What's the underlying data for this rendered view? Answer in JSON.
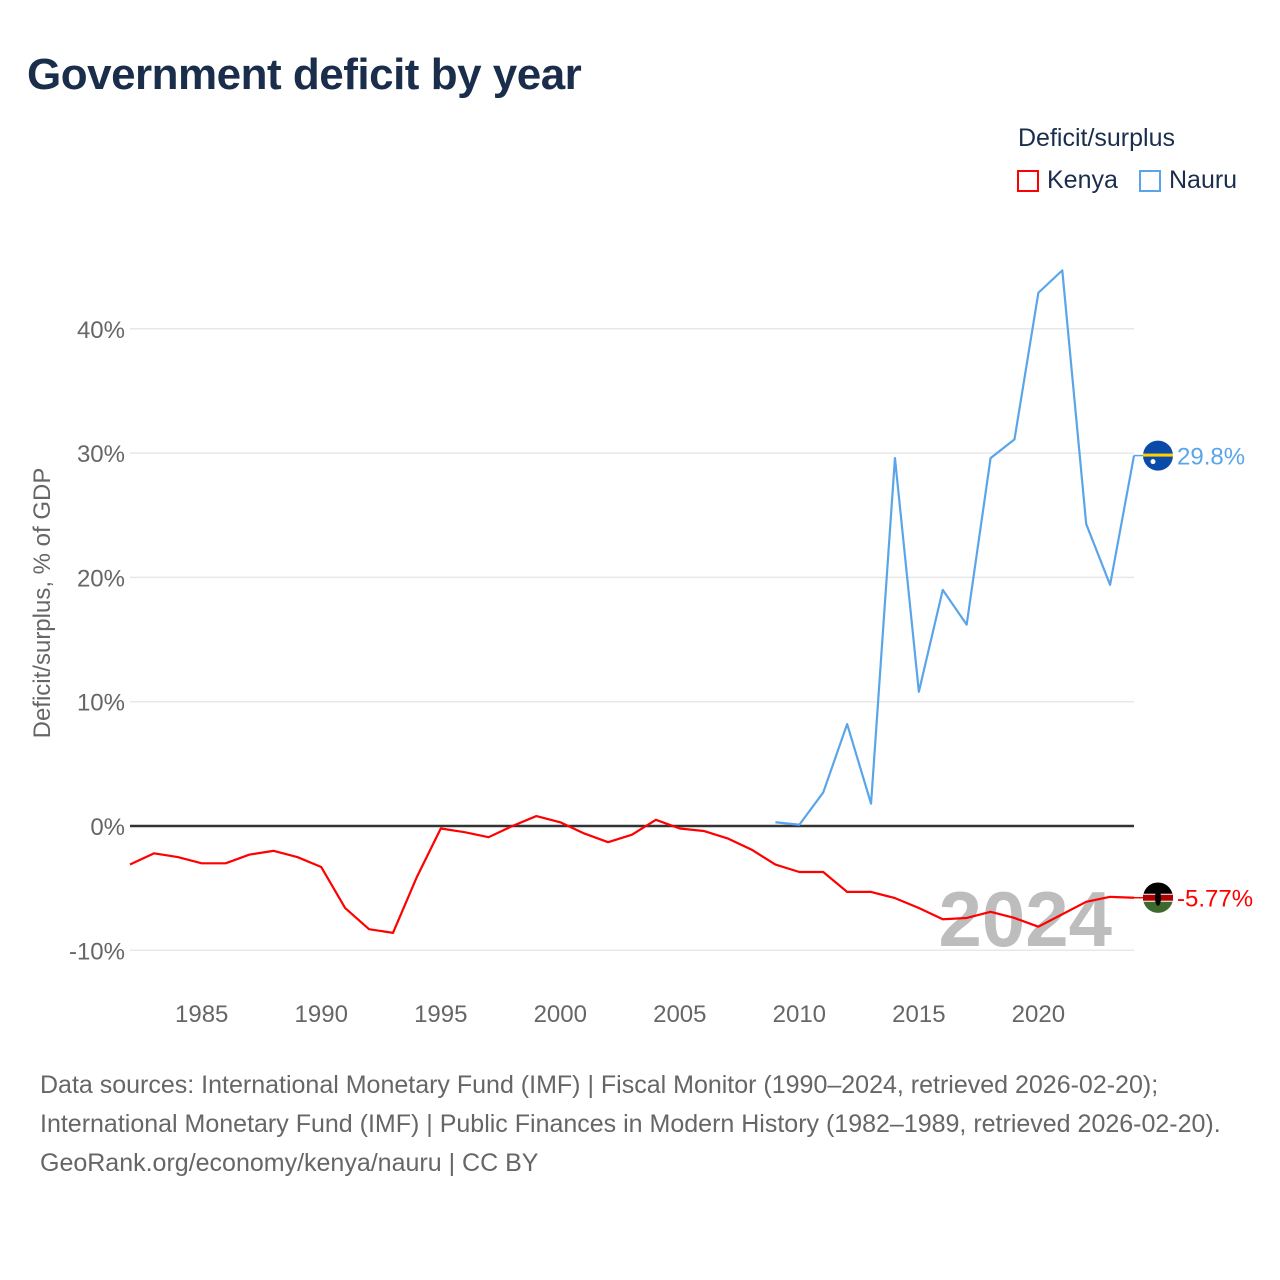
{
  "title": "Government deficit by year",
  "legend": {
    "title": "Deficit/surplus",
    "items": [
      {
        "label": "Kenya",
        "color": "#ff0000"
      },
      {
        "label": "Nauru",
        "color": "#5aa5ea"
      }
    ]
  },
  "chart_data": {
    "type": "line",
    "title": "Government deficit by year",
    "xlabel": "",
    "ylabel": "Deficit/surplus, % of GDP",
    "xlim": [
      1982,
      2024
    ],
    "ylim": [
      -13.7,
      48
    ],
    "x_ticks": [
      1985,
      1990,
      1995,
      2000,
      2005,
      2010,
      2015,
      2020
    ],
    "y_ticks": [
      -10,
      0,
      10,
      20,
      30,
      40
    ],
    "y_tick_labels": [
      "-10%",
      "0%",
      "10%",
      "20%",
      "30%",
      "40%"
    ],
    "grid": true,
    "legend_position": "top-right",
    "watermark_year": "2024",
    "series": [
      {
        "name": "Kenya",
        "color": "#ff0000",
        "end_label": "-5.77%",
        "x": [
          1982,
          1983,
          1984,
          1985,
          1986,
          1987,
          1988,
          1989,
          1990,
          1991,
          1992,
          1993,
          1994,
          1995,
          1996,
          1997,
          1998,
          1999,
          2000,
          2001,
          2002,
          2003,
          2004,
          2005,
          2006,
          2007,
          2008,
          2009,
          2010,
          2011,
          2012,
          2013,
          2014,
          2015,
          2016,
          2017,
          2018,
          2019,
          2020,
          2021,
          2022,
          2023,
          2024
        ],
        "values": [
          -3.1,
          -2.2,
          -2.5,
          -3.0,
          -3.0,
          -2.3,
          -2.0,
          -2.5,
          -3.3,
          -6.6,
          -8.3,
          -8.6,
          -4.1,
          -0.2,
          -0.5,
          -0.9,
          0.0,
          0.8,
          0.3,
          -0.6,
          -1.3,
          -0.7,
          0.5,
          -0.2,
          -0.4,
          -1.0,
          -1.9,
          -3.1,
          -3.7,
          -3.7,
          -5.3,
          -5.3,
          -5.8,
          -6.6,
          -7.5,
          -7.4,
          -6.9,
          -7.4,
          -8.1,
          -7.1,
          -6.1,
          -5.7,
          -5.77
        ]
      },
      {
        "name": "Nauru",
        "color": "#5aa5ea",
        "end_label": "29.8%",
        "x": [
          2009,
          2010,
          2011,
          2012,
          2013,
          2014,
          2015,
          2016,
          2017,
          2018,
          2019,
          2020,
          2021,
          2022,
          2023,
          2024
        ],
        "values": [
          0.3,
          0.1,
          2.7,
          8.2,
          1.8,
          29.6,
          10.8,
          19.0,
          16.2,
          29.6,
          31.1,
          42.9,
          44.7,
          24.3,
          19.4,
          29.8
        ]
      }
    ]
  },
  "sources": {
    "line1": "Data sources: International Monetary Fund (IMF) | Fiscal Monitor (1990–2024, retrieved 2026-02-20); International Monetary Fund (IMF) | Public Finances in Modern History (1982–1989, retrieved 2026-02-20).",
    "line2": "GeoRank.org/economy/kenya/nauru | CC BY"
  }
}
